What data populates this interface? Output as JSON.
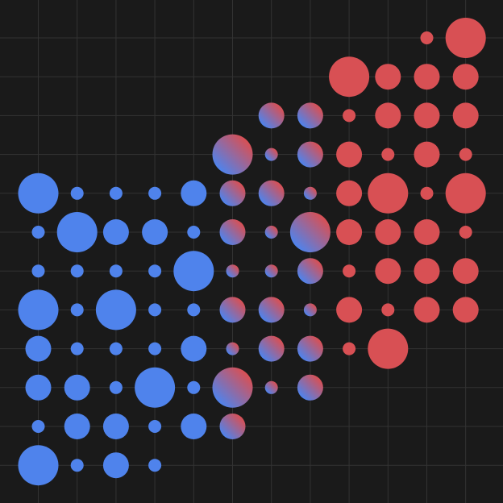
{
  "colors": {
    "background": "#1a1a1a",
    "grid": "#333333",
    "blue": "#4f83ec",
    "red": "#d85054",
    "gradient_stops": [
      "#4f83ec",
      "#d85054"
    ]
  },
  "grid": {
    "columns": 12,
    "rows": 12,
    "visible": true
  },
  "dot_sizes": {
    "s": "small",
    "m": "medium",
    "l": "large"
  },
  "dot_rows": [
    [
      "-",
      "-",
      "-",
      "-",
      "-",
      "-",
      "-",
      "-",
      "-",
      "-",
      "rs",
      "rl"
    ],
    [
      "-",
      "-",
      "-",
      "-",
      "-",
      "-",
      "-",
      "-",
      "rl",
      "rm",
      "rm",
      "rm"
    ],
    [
      "-",
      "-",
      "-",
      "-",
      "-",
      "-",
      "gm",
      "gm",
      "rs",
      "rm",
      "rm",
      "rm"
    ],
    [
      "-",
      "-",
      "-",
      "-",
      "-",
      "gl",
      "gs",
      "gm",
      "rm",
      "rs",
      "rm",
      "rs"
    ],
    [
      "bl",
      "bs",
      "bs",
      "bs",
      "bm",
      "gm",
      "gm",
      "gs",
      "rm",
      "rl",
      "rs",
      "rl"
    ],
    [
      "bs",
      "bl",
      "bm",
      "bm",
      "bs",
      "gm",
      "gs",
      "gl",
      "rm",
      "rm",
      "rm",
      "rs"
    ],
    [
      "bs",
      "bs",
      "bs",
      "bs",
      "bl",
      "gs",
      "gs",
      "gm",
      "rs",
      "rm",
      "rm",
      "rm"
    ],
    [
      "bl",
      "bs",
      "bl",
      "bs",
      "bs",
      "gm",
      "gm",
      "gs",
      "rm",
      "rs",
      "rm",
      "rm"
    ],
    [
      "bm",
      "bs",
      "bs",
      "bs",
      "bm",
      "gs",
      "gm",
      "gm",
      "rs",
      "rl",
      "-",
      "-"
    ],
    [
      "bm",
      "bm",
      "bs",
      "bl",
      "bs",
      "gl",
      "gs",
      "gm",
      "-",
      "-",
      "-",
      "-"
    ],
    [
      "bs",
      "bm",
      "bm",
      "bs",
      "bm",
      "gm",
      "-",
      "-",
      "-",
      "-",
      "-",
      "-"
    ],
    [
      "bl",
      "bs",
      "bm",
      "bs",
      "-",
      "-",
      "-",
      "-",
      "-",
      "-",
      "-",
      "-"
    ]
  ]
}
